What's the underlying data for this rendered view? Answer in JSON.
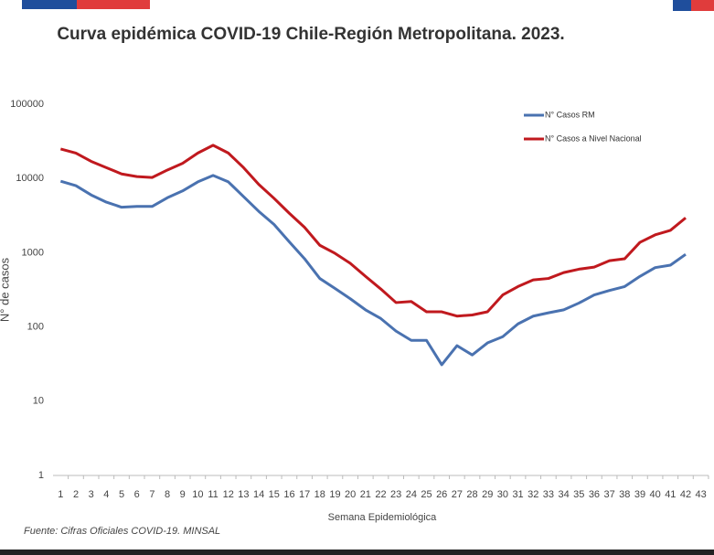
{
  "chart_data": {
    "type": "line",
    "title": "Curva epidémica COVID-19 Chile-Región Metropolitana. 2023.",
    "y_label": "N° de casos",
    "x_label": "Semana Epidemiológica",
    "source": "Fuente: Cifras Oficiales COVID-19. MINSAL",
    "x": [
      1,
      2,
      3,
      4,
      5,
      6,
      7,
      8,
      9,
      10,
      11,
      12,
      13,
      14,
      15,
      16,
      17,
      18,
      19,
      20,
      21,
      22,
      23,
      24,
      25,
      26,
      27,
      28,
      29,
      30,
      31,
      32,
      33,
      34,
      35,
      36,
      37,
      38,
      39,
      40,
      41,
      42
    ],
    "xlim": [
      0.5,
      43.5
    ],
    "xticks": [
      1,
      2,
      3,
      4,
      5,
      6,
      7,
      8,
      9,
      10,
      11,
      12,
      13,
      14,
      15,
      16,
      17,
      18,
      19,
      20,
      21,
      22,
      23,
      24,
      25,
      26,
      27,
      28,
      29,
      30,
      31,
      32,
      33,
      34,
      35,
      36,
      37,
      38,
      39,
      40,
      41,
      42,
      43
    ],
    "ylim": [
      1,
      100000
    ],
    "yticks": [
      1,
      10,
      100,
      1000,
      10000,
      100000
    ],
    "log_y": true,
    "grid": false,
    "legend": "top-right",
    "series": [
      {
        "name": "N° Casos RM",
        "color": "#4a72b0",
        "values": [
          9200,
          8000,
          6000,
          4800,
          4100,
          4200,
          4200,
          5500,
          6800,
          9000,
          11000,
          9000,
          5700,
          3600,
          2400,
          1400,
          830,
          450,
          330,
          240,
          170,
          130,
          88,
          66,
          66,
          31,
          56,
          42,
          61,
          74,
          110,
          140,
          155,
          170,
          210,
          270,
          310,
          350,
          480,
          630,
          680,
          950
        ]
      },
      {
        "name": "N° Casos a Nivel Nacional",
        "color": "#c0191e",
        "values": [
          25000,
          22000,
          17000,
          14000,
          11500,
          10600,
          10300,
          13000,
          16000,
          22000,
          28000,
          22000,
          14000,
          8300,
          5400,
          3400,
          2200,
          1260,
          980,
          720,
          480,
          325,
          213,
          220,
          160,
          160,
          140,
          145,
          160,
          270,
          350,
          430,
          450,
          540,
          600,
          640,
          780,
          830,
          1380,
          1740,
          2000,
          2950
        ]
      }
    ]
  }
}
